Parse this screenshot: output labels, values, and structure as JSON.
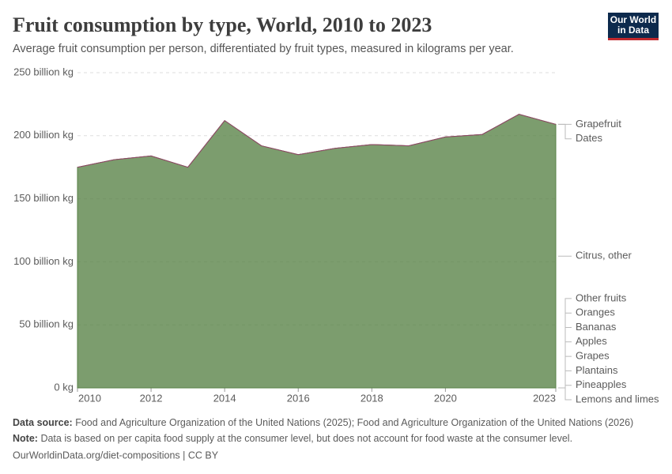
{
  "chart_data": {
    "type": "area",
    "title": "Fruit consumption by type, World, 2010 to 2023",
    "subtitle": "Average fruit consumption per person, differentiated by fruit types, measured in kilograms per year.",
    "x": [
      2010,
      2011,
      2012,
      2013,
      2014,
      2015,
      2016,
      2017,
      2018,
      2019,
      2020,
      2021,
      2022,
      2023
    ],
    "xlim": [
      2010,
      2023
    ],
    "xticks": [
      2010,
      2012,
      2014,
      2016,
      2018,
      2020,
      2023
    ],
    "ylim": [
      0,
      250
    ],
    "yticks": [
      {
        "value": 0,
        "label": "0 kg"
      },
      {
        "value": 50,
        "label": "50 billion kg"
      },
      {
        "value": 100,
        "label": "100 billion kg"
      },
      {
        "value": 150,
        "label": "150 billion kg"
      },
      {
        "value": 200,
        "label": "200 billion kg"
      },
      {
        "value": 250,
        "label": "250 billion kg"
      }
    ],
    "grid": true,
    "series": [
      {
        "name": "Other fruits",
        "color": "#9a5129",
        "values": [
          0,
          0,
          0,
          0,
          0,
          0,
          0,
          0,
          0,
          0,
          0,
          0,
          0,
          0
        ]
      },
      {
        "name": "Oranges",
        "color": "#e56e5a",
        "values": [
          0,
          0,
          0,
          0,
          0,
          0,
          0,
          0,
          0,
          0,
          0,
          0,
          0,
          0
        ]
      },
      {
        "name": "Bananas",
        "color": "#3a6eb3",
        "values": [
          0,
          0,
          0,
          0,
          0,
          0,
          0,
          0,
          0,
          0,
          0,
          0,
          0,
          0
        ]
      },
      {
        "name": "Apples",
        "color": "#2a4d1a",
        "values": [
          0,
          0,
          0,
          0,
          0,
          0,
          0,
          0,
          0,
          0,
          0,
          0,
          0,
          0
        ]
      },
      {
        "name": "Grapes",
        "color": "#7d4a9e",
        "values": [
          0,
          0,
          0,
          0,
          0,
          0,
          0,
          0,
          0,
          0,
          0,
          0,
          0,
          0
        ]
      },
      {
        "name": "Plantains",
        "color": "#18847a",
        "values": [
          0,
          0,
          0,
          0,
          0,
          0,
          0,
          0,
          0,
          0,
          0,
          0,
          0,
          0
        ]
      },
      {
        "name": "Pineapples",
        "color": "#6d2849",
        "values": [
          0,
          0,
          0,
          0,
          0,
          0,
          0,
          0,
          0,
          0,
          0,
          0,
          0,
          0
        ]
      },
      {
        "name": "Lemons and limes",
        "color": "#c8415a",
        "values": [
          0,
          0,
          0,
          0,
          0,
          0,
          0,
          0,
          0,
          0,
          0,
          0,
          0,
          0
        ]
      },
      {
        "name": "Citrus, other",
        "color": "#578145",
        "values": [
          175,
          181,
          184,
          175,
          212,
          192,
          185,
          190,
          193,
          192,
          199,
          201,
          217,
          209
        ]
      },
      {
        "name": "Grapefruit",
        "color": "#a2825b",
        "values": [
          0,
          0,
          0,
          0,
          0,
          0,
          0,
          0,
          0,
          0,
          0,
          0,
          0,
          0
        ]
      },
      {
        "name": "Dates",
        "color": "#8c4569",
        "values": [
          0,
          0,
          0,
          0,
          0,
          0,
          0,
          0,
          0,
          0,
          0,
          0,
          0,
          0
        ]
      }
    ]
  },
  "logo": [
    "Our World",
    "in Data"
  ],
  "footer": {
    "source_label": "Data source:",
    "source_text": "Food and Agriculture Organization of the United Nations (2025); Food and Agriculture Organization of the United Nations (2026)",
    "note_label": "Note:",
    "note_text": "Data is based on per capita food supply at the consumer level, but does not account for food waste at the consumer level.",
    "url": "OurWorldinData.org/diet-compositions | CC BY"
  }
}
